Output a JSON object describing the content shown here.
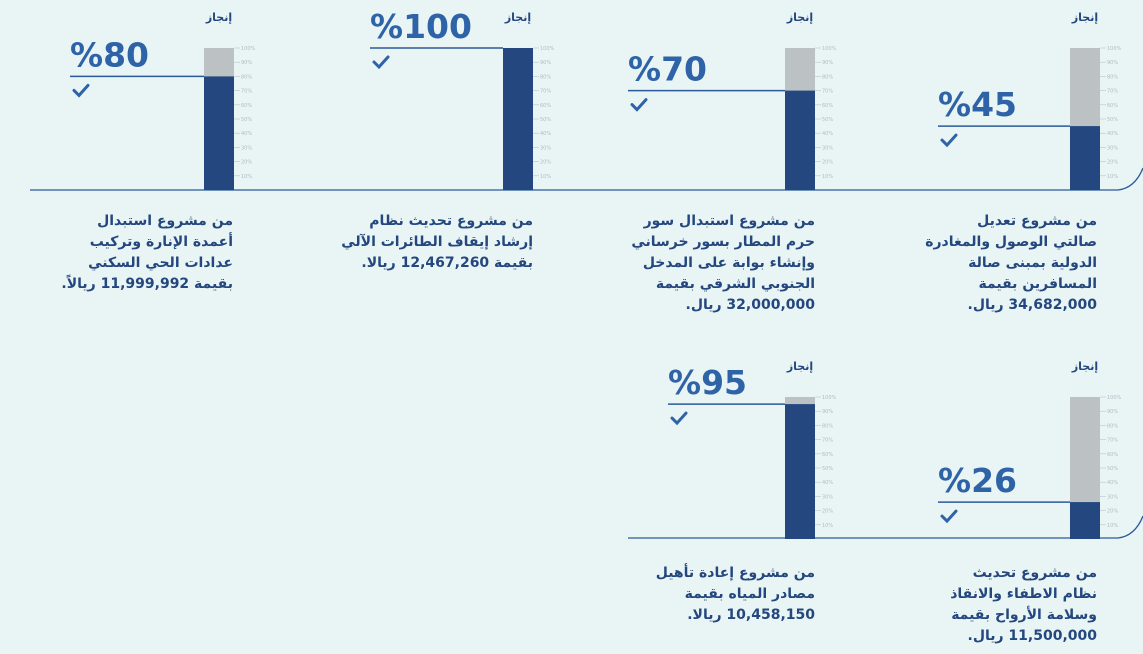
{
  "chart_data": [
    {
      "type": "bar",
      "title": "إنجاز",
      "values": [
        45
      ],
      "value_labels": [
        "%45"
      ],
      "ylim": [
        0,
        100
      ],
      "yticks": [
        {
          "value": 10,
          "label": "10%"
        },
        {
          "value": 20,
          "label": "20%"
        },
        {
          "value": 30,
          "label": "30%"
        },
        {
          "value": 40,
          "label": "40%"
        },
        {
          "value": 50,
          "label": "50%"
        },
        {
          "value": 60,
          "label": "60%"
        },
        {
          "value": 70,
          "label": "70%"
        },
        {
          "value": 80,
          "label": "80%"
        },
        {
          "value": 90,
          "label": "90%"
        },
        {
          "value": 100,
          "label": "100%"
        }
      ],
      "caption": [
        "من مشروع تعديل",
        "صالتي الوصول والمغادرة",
        "الدولية بمبنى صالة",
        "المسافرين بقيمة",
        "34,682,000 ريال."
      ]
    },
    {
      "type": "bar",
      "title": "إنجاز",
      "values": [
        70
      ],
      "value_labels": [
        "%70"
      ],
      "ylim": [
        0,
        100
      ],
      "yticks": [
        {
          "value": 10,
          "label": "10%"
        },
        {
          "value": 20,
          "label": "20%"
        },
        {
          "value": 30,
          "label": "30%"
        },
        {
          "value": 40,
          "label": "40%"
        },
        {
          "value": 50,
          "label": "50%"
        },
        {
          "value": 60,
          "label": "60%"
        },
        {
          "value": 70,
          "label": "70%"
        },
        {
          "value": 80,
          "label": "80%"
        },
        {
          "value": 90,
          "label": "90%"
        },
        {
          "value": 100,
          "label": "100%"
        }
      ],
      "caption": [
        "من مشروع استبدال سور",
        "حرم المطار بسور خرساني",
        "وإنشاء بوابة على المدخل",
        "الجنوبي الشرقي بقيمة",
        "32,000,000 ريال."
      ]
    },
    {
      "type": "bar",
      "title": "إنجاز",
      "values": [
        100
      ],
      "value_labels": [
        "%100"
      ],
      "ylim": [
        0,
        100
      ],
      "yticks": [
        {
          "value": 10,
          "label": "10%"
        },
        {
          "value": 20,
          "label": "20%"
        },
        {
          "value": 30,
          "label": "30%"
        },
        {
          "value": 40,
          "label": "40%"
        },
        {
          "value": 50,
          "label": "50%"
        },
        {
          "value": 60,
          "label": "60%"
        },
        {
          "value": 70,
          "label": "70%"
        },
        {
          "value": 80,
          "label": "80%"
        },
        {
          "value": 90,
          "label": "90%"
        },
        {
          "value": 100,
          "label": "100%"
        }
      ],
      "caption": [
        "من مشروع تحديث نظام",
        "إرشاد إيقاف الطائرات الآلي",
        "بقيمة 12,467,260 ريالا."
      ]
    },
    {
      "type": "bar",
      "title": "إنجاز",
      "values": [
        80
      ],
      "value_labels": [
        "%80"
      ],
      "ylim": [
        0,
        100
      ],
      "yticks": [
        {
          "value": 10,
          "label": "10%"
        },
        {
          "value": 20,
          "label": "20%"
        },
        {
          "value": 30,
          "label": "30%"
        },
        {
          "value": 40,
          "label": "40%"
        },
        {
          "value": 50,
          "label": "50%"
        },
        {
          "value": 60,
          "label": "60%"
        },
        {
          "value": 70,
          "label": "70%"
        },
        {
          "value": 80,
          "label": "80%"
        },
        {
          "value": 90,
          "label": "90%"
        },
        {
          "value": 100,
          "label": "100%"
        }
      ],
      "caption": [
        "من مشروع استبدال",
        "أعمدة الإنارة وتركيب",
        "عدادات الحي السكني",
        "بقيمة 11,999,992 ريالاً."
      ]
    },
    {
      "type": "bar",
      "title": "إنجاز",
      "values": [
        95
      ],
      "value_labels": [
        "%95"
      ],
      "ylim": [
        0,
        100
      ],
      "yticks": [
        {
          "value": 10,
          "label": "10%"
        },
        {
          "value": 20,
          "label": "20%"
        },
        {
          "value": 30,
          "label": "30%"
        },
        {
          "value": 40,
          "label": "40%"
        },
        {
          "value": 50,
          "label": "50%"
        },
        {
          "value": 60,
          "label": "60%"
        },
        {
          "value": 70,
          "label": "70%"
        },
        {
          "value": 80,
          "label": "80%"
        },
        {
          "value": 90,
          "label": "90%"
        },
        {
          "value": 100,
          "label": "100%"
        }
      ],
      "caption": [
        "من مشروع إعادة تأهيل",
        "مصادر المياه بقيمة",
        "10,458,150 ريالا."
      ]
    },
    {
      "type": "bar",
      "title": "إنجاز",
      "values": [
        26
      ],
      "value_labels": [
        "%26"
      ],
      "ylim": [
        0,
        100
      ],
      "yticks": [
        {
          "value": 10,
          "label": "10%"
        },
        {
          "value": 20,
          "label": "20%"
        },
        {
          "value": 30,
          "label": "30%"
        },
        {
          "value": 40,
          "label": "40%"
        },
        {
          "value": 50,
          "label": "50%"
        },
        {
          "value": 60,
          "label": "60%"
        },
        {
          "value": 70,
          "label": "70%"
        },
        {
          "value": 80,
          "label": "80%"
        },
        {
          "value": 90,
          "label": "90%"
        },
        {
          "value": 100,
          "label": "100%"
        }
      ],
      "caption": [
        "من مشروع تحديث",
        "نظام الاطفاء والانقاذ",
        "وسلامة الأرواح بقيمة",
        "11,500,000 ريال."
      ]
    }
  ]
}
